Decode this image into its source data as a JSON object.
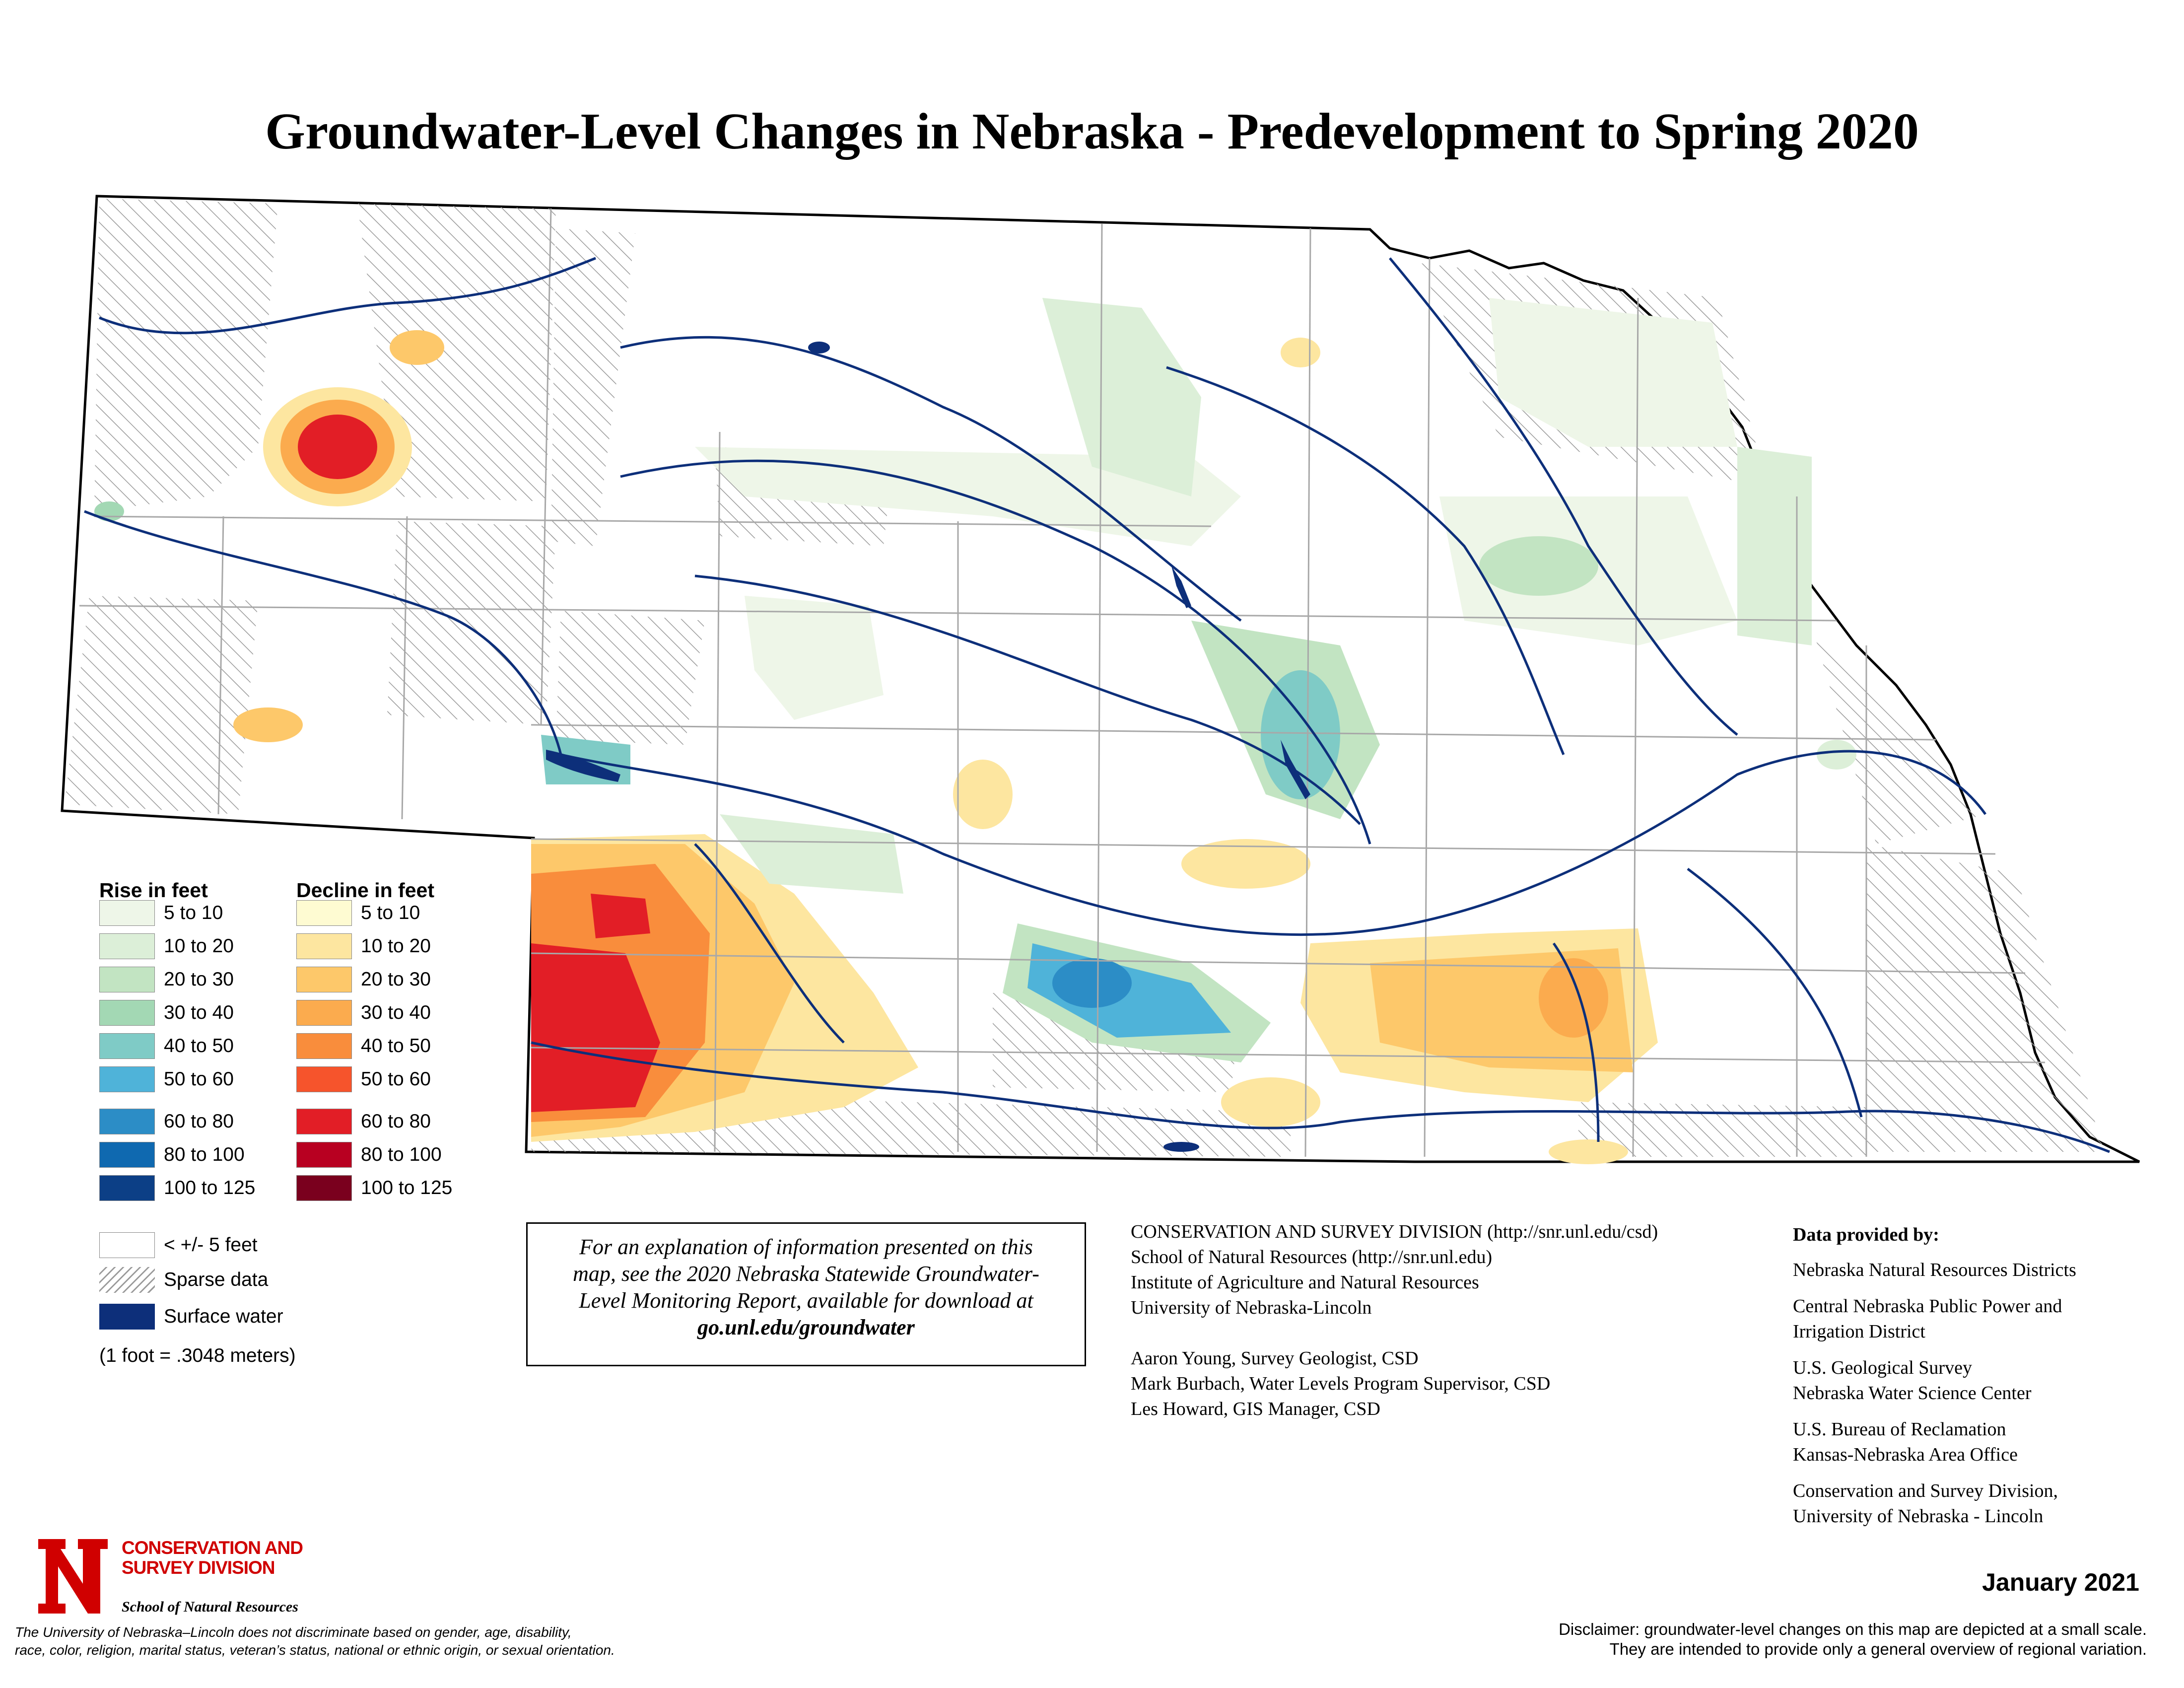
{
  "title": "Groundwater-Level Changes in Nebraska - Predevelopment to Spring 2020",
  "legend": {
    "rise_heading": "Rise in feet",
    "decline_heading": "Decline in feet",
    "rise": [
      {
        "label": "5 to 10",
        "color": "#eef6e8"
      },
      {
        "label": "10 to 20",
        "color": "#dcefd8"
      },
      {
        "label": "20 to 30",
        "color": "#c2e4c2"
      },
      {
        "label": "30 to 40",
        "color": "#a3d8b4"
      },
      {
        "label": "40 to 50",
        "color": "#7fcbc6"
      },
      {
        "label": "50 to 60",
        "color": "#4fb3d9"
      },
      {
        "label": "60 to 80",
        "color": "#2c8dc6"
      },
      {
        "label": "80 to 100",
        "color": "#0f69b0"
      },
      {
        "label": "100 to 125",
        "color": "#0c3f86"
      }
    ],
    "decline": [
      {
        "label": "5 to 10",
        "color": "#fefbd2"
      },
      {
        "label": "10 to 20",
        "color": "#fde6a0"
      },
      {
        "label": "20 to 30",
        "color": "#fdc86a"
      },
      {
        "label": "30 to 40",
        "color": "#fbab4e"
      },
      {
        "label": "40 to 50",
        "color": "#f98d3c"
      },
      {
        "label": "50 to 60",
        "color": "#f6542c"
      },
      {
        "label": "60 to 80",
        "color": "#e21e26"
      },
      {
        "label": "80 to 100",
        "color": "#b80021"
      },
      {
        "label": "100 to 125",
        "color": "#7a001e"
      }
    ],
    "extra": [
      {
        "label": "< +/- 5 feet",
        "kind": "blank"
      },
      {
        "label": "Sparse data",
        "kind": "hatch"
      },
      {
        "label": "Surface water",
        "kind": "fill",
        "color": "#0d2f7a"
      }
    ],
    "conversion": "(1 foot = .3048 meters)"
  },
  "note": {
    "line1": "For an explanation of information presented on this",
    "line2": "map, see the 2020 Nebraska Statewide Groundwater-",
    "line3": "Level Monitoring Report, available for download at",
    "link": "go.unl.edu/groundwater"
  },
  "credits": {
    "lines": [
      "CONSERVATION AND SURVEY DIVISION (http://snr.unl.edu/csd)",
      "School of Natural Resources (http://snr.unl.edu)",
      "Institute of Agriculture and Natural Resources",
      "University of Nebraska-Lincoln"
    ],
    "people": [
      "Aaron Young, Survey Geologist, CSD",
      "Mark Burbach, Water Levels Program Supervisor, CSD",
      "Les Howard, GIS Manager, CSD"
    ]
  },
  "data_provided": {
    "heading": "Data provided by:",
    "items": [
      [
        "Nebraska Natural Resources Districts"
      ],
      [
        "Central Nebraska Public Power and",
        "Irrigation District"
      ],
      [
        "U.S. Geological Survey",
        "Nebraska Water Science Center"
      ],
      [
        "U.S. Bureau of Reclamation",
        "Kansas-Nebraska Area Office"
      ],
      [
        "Conservation and Survey Division,",
        "University of Nebraska - Lincoln"
      ]
    ]
  },
  "logo": {
    "letter": "N",
    "name_line1": "CONSERVATION AND",
    "name_line2": "SURVEY DIVISION",
    "school": "School of Natural Resources",
    "brand_color": "#d00000"
  },
  "nondiscrimination": [
    "The University of Nebraska–Lincoln does not discriminate based on gender, age, disability,",
    "race, color, religion, marital status, veteran’s status, national or ethnic origin, or sexual orientation."
  ],
  "date": "January 2021",
  "disclaimer": [
    "Disclaimer: groundwater-level changes on this map are depicted at a small scale.",
    "They are intended to provide only a general overview of regional variation."
  ]
}
